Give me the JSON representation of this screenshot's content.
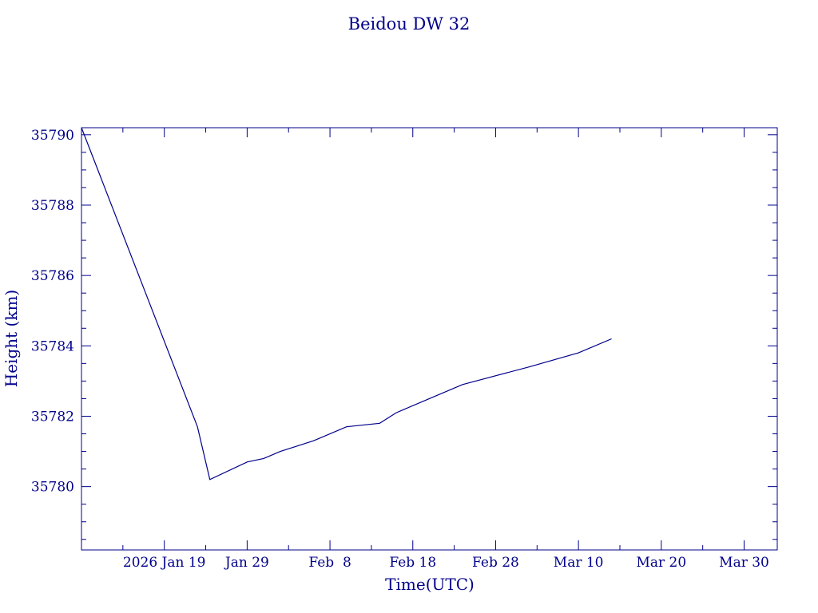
{
  "chart_data": {
    "type": "line",
    "title": "Beidou DW 32",
    "xlabel": "Time(UTC)",
    "ylabel": "Height (km)",
    "color": "#00008b",
    "x_ticks": [
      {
        "date": "2026-01-19",
        "label": "2026 Jan 19"
      },
      {
        "date": "2026-01-29",
        "label": "Jan 29"
      },
      {
        "date": "2026-02-08",
        "label": "Feb  8"
      },
      {
        "date": "2026-02-18",
        "label": "Feb 18"
      },
      {
        "date": "2026-02-28",
        "label": "Feb 28"
      },
      {
        "date": "2026-03-10",
        "label": "Mar 10"
      },
      {
        "date": "2026-03-20",
        "label": "Mar 20"
      },
      {
        "date": "2026-03-30",
        "label": "Mar 30"
      }
    ],
    "xlim": [
      "2026-01-09",
      "2026-04-03"
    ],
    "ylim": [
      35778.2,
      35790.2
    ],
    "y_ticks": [
      35780,
      35782,
      35784,
      35786,
      35788,
      35790
    ],
    "y_tick_labels": [
      "35780",
      "35782",
      "35784",
      "35786",
      "35788",
      "35790"
    ],
    "grid": false,
    "series": [
      {
        "x": [
          "2026-01-09",
          "2026-01-23",
          "2026-01-24.5",
          "2026-01-29",
          "2026-01-31",
          "2026-02-02",
          "2026-02-06",
          "2026-02-10",
          "2026-02-14",
          "2026-02-16",
          "2026-02-20",
          "2026-02-24",
          "2026-03-04",
          "2026-03-10",
          "2026-03-14"
        ],
        "y": [
          35790.2,
          35781.7,
          35780.2,
          35780.7,
          35780.8,
          35781.0,
          35781.3,
          35781.7,
          35781.8,
          35782.1,
          35782.5,
          35782.9,
          35783.4,
          35783.8,
          35784.2
        ]
      }
    ]
  }
}
